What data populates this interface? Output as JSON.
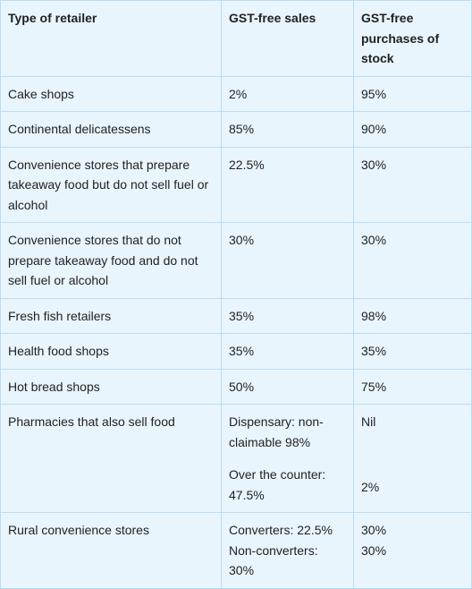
{
  "table": {
    "headers": [
      "Type of retailer",
      "GST-free sales",
      "GST-free purchases of stock"
    ],
    "rows": [
      [
        "Cake shops",
        "2%",
        "95%"
      ],
      [
        "Continental delicatessens",
        "85%",
        "90%"
      ],
      [
        "Convenience stores that prepare takeaway food but do not sell fuel or alcohol",
        "22.5%",
        "30%"
      ],
      [
        "Convenience stores that do not prepare takeaway food and do not sell fuel or alcohol",
        "30%",
        "30%"
      ],
      [
        "Fresh fish retailers",
        "35%",
        "98%"
      ],
      [
        "Health food shops",
        "35%",
        "35%"
      ],
      [
        "Hot bread shops",
        "50%",
        "75%"
      ],
      [
        "Pharmacies that also sell food",
        [
          "Dispensary: non-claimable 98%",
          "Over the counter: 47.5%"
        ],
        [
          "Nil",
          "2%"
        ]
      ],
      [
        "Rural convenience stores",
        [
          "Converters: 22.5%",
          "Non-converters: 30%"
        ],
        [
          "30%",
          "30%"
        ]
      ]
    ]
  }
}
